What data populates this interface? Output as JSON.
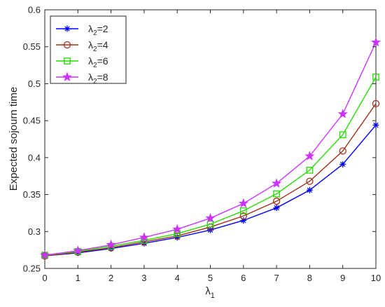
{
  "chart_data": {
    "type": "line",
    "title": "",
    "xlabel": "λ",
    "xlabel_sub": "1",
    "ylabel": "Expected sojourn time",
    "x": [
      0,
      1,
      2,
      3,
      4,
      5,
      6,
      7,
      8,
      9,
      10
    ],
    "xlim": [
      0,
      10
    ],
    "ylim": [
      0.25,
      0.6
    ],
    "xticks": [
      "0",
      "1",
      "2",
      "3",
      "4",
      "5",
      "6",
      "7",
      "8",
      "9",
      "10"
    ],
    "yticks": [
      "0.25",
      "0.3",
      "0.35",
      "0.4",
      "0.45",
      "0.5",
      "0.55",
      "0.6"
    ],
    "grid": false,
    "legend_position": "top-left",
    "series": [
      {
        "name": "λ2=2",
        "legend": {
          "base": "λ",
          "sub": "2",
          "suffix": "=2"
        },
        "color": "#0000ff",
        "marker": "asterisk",
        "values": [
          0.267,
          0.271,
          0.277,
          0.284,
          0.292,
          0.302,
          0.315,
          0.332,
          0.356,
          0.391,
          0.444
        ]
      },
      {
        "name": "λ2=4",
        "legend": {
          "base": "λ",
          "sub": "2",
          "suffix": "=4"
        },
        "color": "#a0301a",
        "marker": "circle",
        "values": [
          0.267,
          0.272,
          0.278,
          0.286,
          0.294,
          0.306,
          0.321,
          0.341,
          0.368,
          0.409,
          0.473
        ]
      },
      {
        "name": "λ2=6",
        "legend": {
          "base": "λ",
          "sub": "2",
          "suffix": "=6"
        },
        "color": "#22dd00",
        "marker": "square",
        "values": [
          0.268,
          0.273,
          0.28,
          0.288,
          0.297,
          0.31,
          0.328,
          0.351,
          0.383,
          0.431,
          0.509
        ]
      },
      {
        "name": "λ2=8",
        "legend": {
          "base": "λ",
          "sub": "2",
          "suffix": "=8"
        },
        "color": "#cc33ff",
        "marker": "star",
        "values": [
          0.268,
          0.274,
          0.282,
          0.292,
          0.303,
          0.318,
          0.338,
          0.365,
          0.402,
          0.459,
          0.556
        ]
      }
    ]
  }
}
